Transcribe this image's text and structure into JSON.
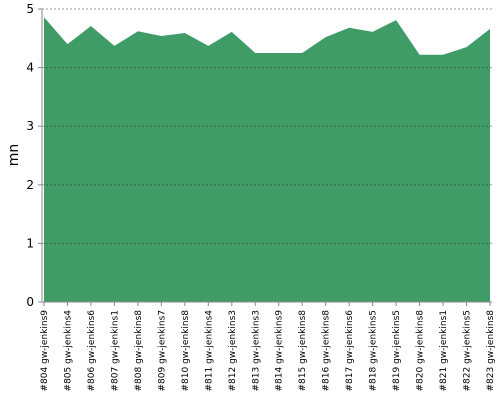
{
  "chart_data": {
    "type": "area",
    "y_label": "mn",
    "categories": [
      "#804 gw-jenkins9",
      "#805 gw-jenkins4",
      "#806 gw-jenkins6",
      "#807 gw-jenkins1",
      "#808 gw-jenkins8",
      "#809 gw-jenkins7",
      "#810 gw-jenkins8",
      "#811 gw-jenkins4",
      "#812 gw-jenkins3",
      "#813 gw-jenkins3",
      "#814 gw-jenkins9",
      "#815 gw-jenkins8",
      "#816 gw-jenkins8",
      "#817 gw-jenkins6",
      "#818 gw-jenkins5",
      "#819 gw-jenkins5",
      "#820 gw-jenkins8",
      "#821 gw-jenkins1",
      "#822 gw-jenkins5",
      "#823 gw-jenkins8"
    ],
    "values": [
      4.86,
      4.4,
      4.71,
      4.37,
      4.62,
      4.54,
      4.59,
      4.37,
      4.61,
      4.25,
      4.25,
      4.25,
      4.52,
      4.68,
      4.61,
      4.81,
      4.22,
      4.22,
      4.35,
      4.66
    ],
    "color": "#3f9c67",
    "ylim": [
      0,
      5
    ],
    "yticks": [
      0,
      1,
      2,
      3,
      4,
      5
    ],
    "grid": true
  }
}
